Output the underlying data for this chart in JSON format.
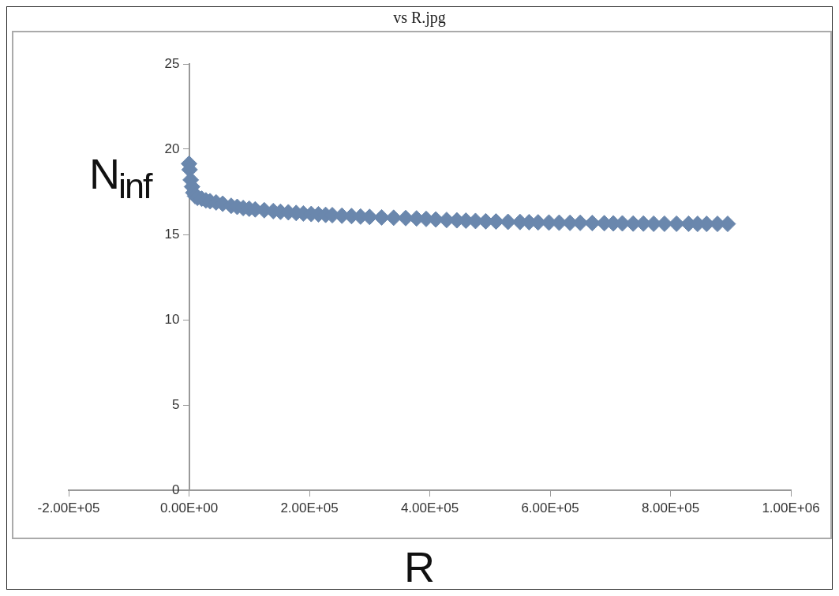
{
  "chart_data": {
    "type": "scatter",
    "title": "vs R.jpg",
    "xlabel": "R",
    "ylabel": "N$_{inf}$",
    "x": [
      0,
      1000,
      2800,
      5000,
      7000,
      10000,
      14000,
      21000,
      28000,
      35000,
      45000,
      56000,
      70000,
      80000,
      90000,
      100000,
      110000,
      125000,
      140000,
      152000,
      165000,
      178000,
      190000,
      203000,
      215000,
      227000,
      238000,
      254000,
      270000,
      285000,
      300000,
      320000,
      340000,
      360000,
      378000,
      394000,
      410000,
      428000,
      445000,
      460000,
      476000,
      493000,
      510000,
      530000,
      550000,
      565000,
      580000,
      598000,
      615000,
      633000,
      650000,
      670000,
      690000,
      705000,
      720000,
      738000,
      755000,
      772000,
      790000,
      810000,
      830000,
      845000,
      860000,
      878000,
      895000
    ],
    "series": [
      {
        "color": "#6a87ad",
        "values": [
          19.15,
          18.8,
          18.2,
          17.8,
          17.45,
          17.25,
          17.15,
          17.1,
          17.0,
          16.95,
          16.88,
          16.8,
          16.68,
          16.62,
          16.55,
          16.51,
          16.47,
          16.42,
          16.37,
          16.33,
          16.3,
          16.26,
          16.23,
          16.2,
          16.18,
          16.15,
          16.13,
          16.1,
          16.08,
          16.05,
          16.03,
          16.0,
          15.98,
          15.96,
          15.94,
          15.91,
          15.88,
          15.85,
          15.83,
          15.81,
          15.79,
          15.77,
          15.76,
          15.74,
          15.73,
          15.72,
          15.71,
          15.7,
          15.69,
          15.68,
          15.68,
          15.67,
          15.66,
          15.65,
          15.65,
          15.64,
          15.64,
          15.63,
          15.63,
          15.63,
          15.63,
          15.62,
          15.62,
          15.62,
          15.62
        ]
      }
    ],
    "xlim": [
      -200000,
      1000000
    ],
    "xticks": [
      {
        "value": -200000,
        "label": "-2.00E+05"
      },
      {
        "value": 0,
        "label": "0.00E+00"
      },
      {
        "value": 200000,
        "label": "2.00E+05"
      },
      {
        "value": 400000,
        "label": "4.00E+05"
      },
      {
        "value": 600000,
        "label": "6.00E+05"
      },
      {
        "value": 800000,
        "label": "8.00E+05"
      },
      {
        "value": 1000000,
        "label": "1.00E+06"
      }
    ],
    "ylim": [
      0,
      25
    ],
    "yticks": [
      0,
      5,
      10,
      15,
      20,
      25
    ],
    "grid": false,
    "legend": false,
    "marker": "diamond"
  }
}
